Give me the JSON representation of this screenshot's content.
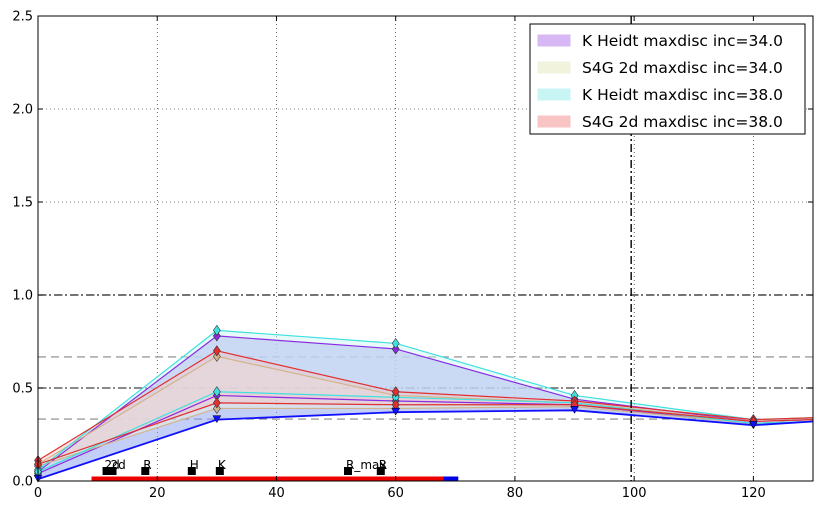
{
  "chart_data": {
    "type": "area",
    "xlim": [
      0,
      130
    ],
    "ylim": [
      0,
      2.5
    ],
    "xticks": [
      0,
      20,
      40,
      60,
      80,
      100,
      120
    ],
    "yticks": [
      0.0,
      0.5,
      1.0,
      1.5,
      2.0,
      2.5
    ],
    "xtick_labels": [
      "0",
      "20",
      "40",
      "60",
      "80",
      "100",
      "120"
    ],
    "ytick_labels": [
      "0.0",
      "0.5",
      "1.0",
      "1.5",
      "2.0",
      "2.5"
    ],
    "grid": true,
    "legend_position": "top-right",
    "x": [
      0,
      30,
      60,
      90,
      120,
      130
    ],
    "series": [
      {
        "name": "K Heidt maxdisc inc=34.0",
        "color": "#8a2be2",
        "fill": "#d7b8f5",
        "upper": [
          0.05,
          0.78,
          0.71,
          0.44,
          0.32,
          0.33
        ],
        "lower": [
          0.04,
          0.46,
          0.43,
          0.41,
          0.31,
          0.32
        ]
      },
      {
        "name": "S4G 2d maxdisc inc=34.0",
        "color": "#d2b48c",
        "fill": "#f1f3dc",
        "upper": [
          0.09,
          0.67,
          0.46,
          0.42,
          0.32,
          0.33
        ],
        "lower": [
          0.08,
          0.39,
          0.39,
          0.4,
          0.31,
          0.32
        ]
      },
      {
        "name": "K Heidt maxdisc inc=38.0",
        "color": "#40e0e0",
        "fill": "#c8f4f4",
        "upper": [
          0.06,
          0.81,
          0.74,
          0.46,
          0.33,
          0.34
        ],
        "lower": [
          0.05,
          0.48,
          0.45,
          0.42,
          0.31,
          0.32
        ]
      },
      {
        "name": "S4G 2d maxdisc inc=38.0",
        "color": "#e03030",
        "fill": "#f9c4c4",
        "upper": [
          0.11,
          0.7,
          0.48,
          0.43,
          0.33,
          0.34
        ],
        "lower": [
          0.09,
          0.42,
          0.41,
          0.41,
          0.32,
          0.33
        ]
      }
    ],
    "blue_band": {
      "color": "#1010ff",
      "fill": "#8aa0f0",
      "upper": [
        0.04,
        0.78,
        0.71,
        0.44,
        0.32,
        0.33
      ],
      "lower": [
        0.01,
        0.33,
        0.37,
        0.38,
        0.3,
        0.32
      ]
    },
    "hlines": [
      {
        "y": 1.0,
        "style": "dashdot",
        "color": "#222222"
      },
      {
        "y": 0.667,
        "style": "dashed",
        "color": "#888888"
      },
      {
        "y": 0.5,
        "style": "dashdot",
        "color": "#444444"
      },
      {
        "y": 0.333,
        "style": "dashed",
        "color": "#888888"
      }
    ],
    "vline": {
      "x": 99.5,
      "style": "dashdot",
      "color": "#000000"
    },
    "range_bars": [
      {
        "x0": 9,
        "x1": 70.5,
        "color": "#0000ee"
      },
      {
        "x0": 9,
        "x1": 68,
        "color": "#ee0000"
      }
    ],
    "point_markers": [
      {
        "x": 11.5,
        "label": "2d"
      },
      {
        "x": 12.5,
        "label": "2d"
      },
      {
        "x": 18,
        "label": "R"
      },
      {
        "x": 25.8,
        "label": "H"
      },
      {
        "x": 30.5,
        "label": "K"
      },
      {
        "x": 52,
        "label": "R_max"
      },
      {
        "x": 57.5,
        "label": "R"
      }
    ]
  }
}
